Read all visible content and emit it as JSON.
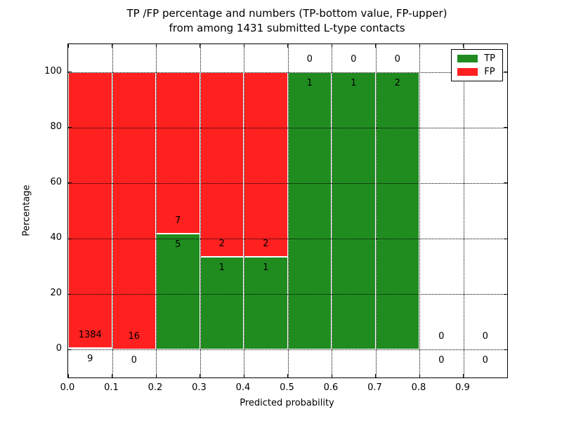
{
  "title": {
    "line1": "TP /FP percentage and numbers (TP-bottom value, FP-upper)",
    "line2": "from among 1431 submitted L-type contacts"
  },
  "axes": {
    "xlabel": "Predicted probability",
    "ylabel": "Percentage",
    "x_ticklabels": [
      "0.0",
      "0.1",
      "0.2",
      "0.3",
      "0.4",
      "0.5",
      "0.6",
      "0.7",
      "0.8",
      "0.9"
    ],
    "y_ticklabels": [
      "0",
      "20",
      "40",
      "60",
      "80",
      "100"
    ]
  },
  "legend": {
    "items": [
      {
        "label": "TP",
        "color": "#208c20"
      },
      {
        "label": "FP",
        "color": "#ff2020"
      }
    ]
  },
  "chart_data": {
    "type": "bar",
    "subtype": "stacked-percentage",
    "title": "TP /FP percentage and numbers (TP-bottom value, FP-upper) from among 1431 submitted L-type contacts",
    "xlabel": "Predicted probability",
    "ylabel": "Percentage",
    "xlim": [
      0.0,
      1.0
    ],
    "ylim": [
      -10,
      110
    ],
    "x_ticks": [
      0.0,
      0.1,
      0.2,
      0.3,
      0.4,
      0.5,
      0.6,
      0.7,
      0.8,
      0.9,
      1.0
    ],
    "y_ticks": [
      0,
      20,
      40,
      60,
      80,
      100
    ],
    "grid": true,
    "legend_position": "upper right",
    "colors": {
      "tp": "#208c20",
      "fp": "#ff2020"
    },
    "total_contacts": 1431,
    "bins": [
      {
        "range": [
          0.0,
          0.1
        ],
        "tp": 9,
        "fp": 1384
      },
      {
        "range": [
          0.1,
          0.2
        ],
        "tp": 0,
        "fp": 16
      },
      {
        "range": [
          0.2,
          0.3
        ],
        "tp": 5,
        "fp": 7
      },
      {
        "range": [
          0.3,
          0.4
        ],
        "tp": 1,
        "fp": 2
      },
      {
        "range": [
          0.4,
          0.5
        ],
        "tp": 1,
        "fp": 2
      },
      {
        "range": [
          0.5,
          0.6
        ],
        "tp": 1,
        "fp": 0
      },
      {
        "range": [
          0.6,
          0.7
        ],
        "tp": 1,
        "fp": 0
      },
      {
        "range": [
          0.7,
          0.8
        ],
        "tp": 2,
        "fp": 0
      },
      {
        "range": [
          0.8,
          0.9
        ],
        "tp": 0,
        "fp": 0
      },
      {
        "range": [
          0.9,
          1.0
        ],
        "tp": 0,
        "fp": 0
      }
    ]
  }
}
